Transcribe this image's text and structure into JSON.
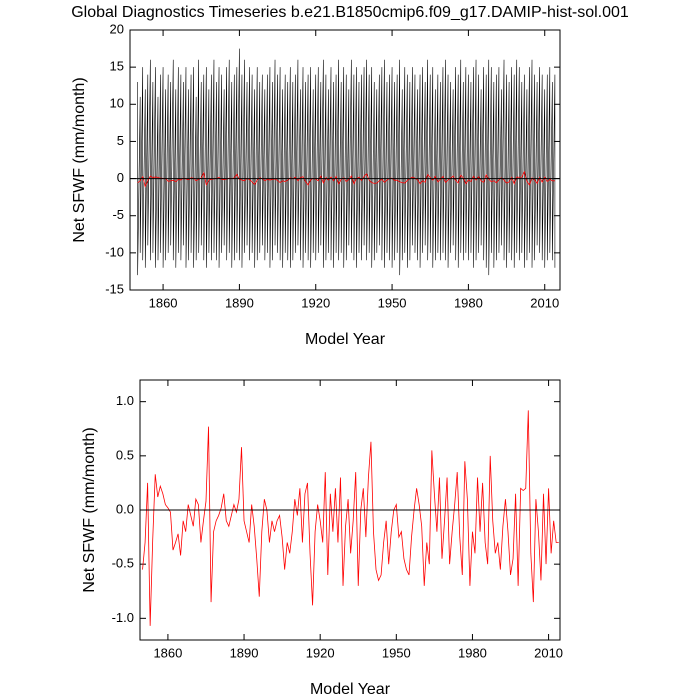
{
  "chart_data": [
    {
      "type": "line",
      "title": "Global Diagnostics Timeseries b.e21.B1850cmip6.f09_g17.DAMIP-hist-sol.001",
      "x_label": "Model Year",
      "y_label": "Net SFWF (mm/month)",
      "xlim": [
        1847,
        2016
      ],
      "xticks": [
        1860,
        1890,
        1920,
        1950,
        1980,
        2010
      ],
      "ylim": [
        -15,
        20
      ],
      "yticks": [
        -15,
        -10,
        -5,
        0,
        5,
        10,
        15,
        20
      ],
      "reference_line": 0,
      "x": [
        1850,
        1851,
        1852,
        1853,
        1854,
        1855,
        1856,
        1857,
        1858,
        1859,
        1860,
        1861,
        1862,
        1863,
        1864,
        1865,
        1866,
        1867,
        1868,
        1869,
        1870,
        1871,
        1872,
        1873,
        1874,
        1875,
        1876,
        1877,
        1878,
        1879,
        1880,
        1881,
        1882,
        1883,
        1884,
        1885,
        1886,
        1887,
        1888,
        1889,
        1890,
        1891,
        1892,
        1893,
        1894,
        1895,
        1896,
        1897,
        1898,
        1899,
        1900,
        1901,
        1902,
        1903,
        1904,
        1905,
        1906,
        1907,
        1908,
        1909,
        1910,
        1911,
        1912,
        1913,
        1914,
        1915,
        1916,
        1917,
        1918,
        1919,
        1920,
        1921,
        1922,
        1923,
        1924,
        1925,
        1926,
        1927,
        1928,
        1929,
        1930,
        1931,
        1932,
        1933,
        1934,
        1935,
        1936,
        1937,
        1938,
        1939,
        1940,
        1941,
        1942,
        1943,
        1944,
        1945,
        1946,
        1947,
        1948,
        1949,
        1950,
        1951,
        1952,
        1953,
        1954,
        1955,
        1956,
        1957,
        1958,
        1959,
        1960,
        1961,
        1962,
        1963,
        1964,
        1965,
        1966,
        1967,
        1968,
        1969,
        1970,
        1971,
        1972,
        1973,
        1974,
        1975,
        1976,
        1977,
        1978,
        1979,
        1980,
        1981,
        1982,
        1983,
        1984,
        1985,
        1986,
        1987,
        1988,
        1989,
        1990,
        1991,
        1992,
        1993,
        1994,
        1995,
        1996,
        1997,
        1998,
        1999,
        2000,
        2001,
        2002,
        2003,
        2004,
        2005,
        2006,
        2007,
        2008,
        2009,
        2010,
        2011,
        2012,
        2013,
        2014
      ],
      "series": [
        {
          "color": "#000000",
          "high": [
            13,
            11,
            15,
            12,
            14,
            16,
            13,
            15,
            11,
            14,
            15,
            12,
            14,
            13,
            16,
            12,
            15,
            14,
            13,
            15,
            12,
            14,
            15,
            11,
            16,
            13,
            14,
            15,
            12,
            14,
            16,
            13,
            15,
            14,
            12,
            15,
            16,
            13,
            14,
            15,
            17.5,
            14,
            16,
            13,
            15,
            14,
            12,
            15,
            13,
            14,
            12,
            14,
            15,
            13,
            16,
            14,
            15,
            12,
            14,
            13,
            15,
            13,
            14,
            16,
            12,
            15,
            13,
            14,
            15,
            12,
            14,
            15,
            13,
            16,
            14,
            12,
            15,
            13,
            14,
            16,
            13,
            15,
            14,
            12,
            16,
            14,
            15,
            13,
            14,
            15,
            16,
            14,
            15,
            13,
            12,
            14,
            15,
            16,
            13,
            14,
            15,
            13,
            14,
            16,
            12,
            15,
            14,
            13,
            15,
            14,
            12,
            14,
            15,
            13,
            16,
            14,
            15,
            12,
            14,
            13,
            15,
            16,
            14,
            13,
            12,
            15,
            14,
            16,
            13,
            15,
            14,
            13,
            15,
            16,
            14,
            12,
            15,
            14,
            16,
            15,
            13,
            14,
            15,
            12,
            16,
            14,
            13,
            15,
            14,
            16,
            15,
            13,
            14,
            12,
            15,
            16,
            14,
            13,
            15,
            14,
            12,
            14,
            15,
            13,
            14
          ],
          "low": [
            -13,
            -10,
            -11,
            -12,
            -9,
            -11,
            -10,
            -12,
            -11,
            -10,
            -12,
            -11,
            -10,
            -9,
            -11,
            -12,
            -10,
            -11,
            -9,
            -12,
            -11,
            -10,
            -12,
            -11,
            -10,
            -9,
            -11,
            -12,
            -10,
            -11,
            -10,
            -11,
            -12,
            -10,
            -9,
            -11,
            -10,
            -12,
            -11,
            -10,
            -11,
            -12,
            -10,
            -9,
            -11,
            -10,
            -12,
            -11,
            -10,
            -9,
            -11,
            -10,
            -12,
            -11,
            -9,
            -10,
            -11,
            -12,
            -10,
            -11,
            -12,
            -11,
            -10,
            -9,
            -11,
            -12,
            -10,
            -11,
            -12,
            -10,
            -11,
            -10,
            -9,
            -12,
            -11,
            -10,
            -11,
            -12,
            -10,
            -11,
            -10,
            -12,
            -11,
            -9,
            -10,
            -11,
            -12,
            -10,
            -11,
            -9,
            -11,
            -10,
            -12,
            -11,
            -10,
            -9,
            -11,
            -12,
            -10,
            -11,
            -12,
            -11,
            -10,
            -13,
            -11,
            -10,
            -12,
            -11,
            -9,
            -10,
            -11,
            -12,
            -10,
            -9,
            -11,
            -10,
            -12,
            -11,
            -10,
            -11,
            -10,
            -11,
            -12,
            -10,
            -9,
            -11,
            -12,
            -10,
            -11,
            -10,
            -11,
            -10,
            -12,
            -11,
            -10,
            -9,
            -11,
            -12,
            -13,
            -10,
            -12,
            -11,
            -10,
            -9,
            -11,
            -12,
            -10,
            -11,
            -12,
            -10,
            -11,
            -10,
            -12,
            -11,
            -10,
            -12,
            -11,
            -9,
            -10,
            -11,
            -12,
            -11,
            -10,
            -11,
            -12
          ]
        },
        {
          "color": "#ff0000",
          "values": [
            -0.55,
            -0.3,
            0.25,
            -1.07,
            -0.28,
            0.33,
            0.12,
            0.22,
            0.15,
            0.05,
            0.02,
            -0.02,
            -0.37,
            -0.3,
            -0.22,
            -0.42,
            -0.1,
            -0.2,
            0.05,
            -0.05,
            -0.15,
            0.1,
            0.05,
            -0.3,
            -0.1,
            0.08,
            0.77,
            -0.85,
            -0.2,
            -0.1,
            -0.05,
            0.02,
            0.15,
            -0.1,
            -0.15,
            -0.05,
            0.05,
            -0.02,
            0.1,
            0.58,
            -0.1,
            -0.2,
            -0.3,
            0.05,
            -0.15,
            -0.45,
            -0.8,
            -0.2,
            0.1,
            0.0,
            -0.3,
            -0.1,
            -0.2,
            -0.1,
            -0.05,
            -0.25,
            -0.55,
            -0.3,
            -0.4,
            -0.2,
            0.1,
            -0.05,
            0.2,
            -0.3,
            0.15,
            0.25,
            -0.4,
            -0.88,
            -0.2,
            0.05,
            -0.1,
            -0.3,
            0.35,
            -0.6,
            0.15,
            -0.2,
            0.2,
            -0.3,
            0.3,
            -0.7,
            -0.15,
            0.1,
            -0.4,
            -0.1,
            0.35,
            -0.7,
            0.0,
            0.2,
            -0.25,
            0.3,
            0.63,
            -0.2,
            -0.55,
            -0.65,
            -0.6,
            -0.3,
            -0.1,
            -0.5,
            -0.2,
            0.0,
            0.05,
            -0.25,
            -0.2,
            -0.45,
            -0.55,
            -0.6,
            -0.25,
            0.0,
            0.2,
            0.05,
            -0.15,
            -0.7,
            -0.3,
            -0.5,
            0.55,
            0.15,
            -0.2,
            0.3,
            -0.45,
            -0.1,
            0.3,
            -0.5,
            -0.2,
            0.05,
            0.35,
            -0.25,
            -0.6,
            0.45,
            0.1,
            -0.7,
            -0.2,
            -0.4,
            0.3,
            -0.2,
            0.25,
            -0.3,
            -0.5,
            0.5,
            -0.1,
            -0.4,
            -0.3,
            -0.55,
            -0.15,
            0.1,
            -0.2,
            -0.6,
            -0.45,
            0.15,
            -0.7,
            0.2,
            0.18,
            0.2,
            0.92,
            -0.4,
            -0.85,
            0.1,
            -0.2,
            -0.65,
            0.15,
            -0.5,
            0.2,
            -0.4,
            -0.1,
            -0.3,
            -0.3
          ]
        }
      ]
    },
    {
      "type": "line",
      "x_label": "Model Year",
      "y_label": "Net SFWF (mm/month)",
      "xlim": [
        1849,
        2014.5
      ],
      "xticks": [
        1860,
        1890,
        1920,
        1950,
        1980,
        2010
      ],
      "ylim": [
        -1.2,
        1.2
      ],
      "yticks": [
        {
          "value": -1,
          "label": "-1.0"
        },
        -0.5,
        {
          "value": 0,
          "label": "0.0"
        },
        0.5,
        {
          "value": 1,
          "label": "1.0"
        }
      ],
      "reference_line": 0,
      "x": [
        1850,
        1851,
        1852,
        1853,
        1854,
        1855,
        1856,
        1857,
        1858,
        1859,
        1860,
        1861,
        1862,
        1863,
        1864,
        1865,
        1866,
        1867,
        1868,
        1869,
        1870,
        1871,
        1872,
        1873,
        1874,
        1875,
        1876,
        1877,
        1878,
        1879,
        1880,
        1881,
        1882,
        1883,
        1884,
        1885,
        1886,
        1887,
        1888,
        1889,
        1890,
        1891,
        1892,
        1893,
        1894,
        1895,
        1896,
        1897,
        1898,
        1899,
        1900,
        1901,
        1902,
        1903,
        1904,
        1905,
        1906,
        1907,
        1908,
        1909,
        1910,
        1911,
        1912,
        1913,
        1914,
        1915,
        1916,
        1917,
        1918,
        1919,
        1920,
        1921,
        1922,
        1923,
        1924,
        1925,
        1926,
        1927,
        1928,
        1929,
        1930,
        1931,
        1932,
        1933,
        1934,
        1935,
        1936,
        1937,
        1938,
        1939,
        1940,
        1941,
        1942,
        1943,
        1944,
        1945,
        1946,
        1947,
        1948,
        1949,
        1950,
        1951,
        1952,
        1953,
        1954,
        1955,
        1956,
        1957,
        1958,
        1959,
        1960,
        1961,
        1962,
        1963,
        1964,
        1965,
        1966,
        1967,
        1968,
        1969,
        1970,
        1971,
        1972,
        1973,
        1974,
        1975,
        1976,
        1977,
        1978,
        1979,
        1980,
        1981,
        1982,
        1983,
        1984,
        1985,
        1986,
        1987,
        1988,
        1989,
        1990,
        1991,
        1992,
        1993,
        1994,
        1995,
        1996,
        1997,
        1998,
        1999,
        2000,
        2001,
        2002,
        2003,
        2004,
        2005,
        2006,
        2007,
        2008,
        2009,
        2010,
        2011,
        2012,
        2013,
        2014
      ],
      "series": [
        {
          "color": "#ff0000",
          "values": [
            -0.55,
            -0.3,
            0.25,
            -1.07,
            -0.28,
            0.33,
            0.12,
            0.22,
            0.15,
            0.05,
            0.02,
            -0.02,
            -0.37,
            -0.3,
            -0.22,
            -0.42,
            -0.1,
            -0.2,
            0.05,
            -0.05,
            -0.15,
            0.1,
            0.05,
            -0.3,
            -0.1,
            0.08,
            0.77,
            -0.85,
            -0.2,
            -0.1,
            -0.05,
            0.02,
            0.15,
            -0.1,
            -0.15,
            -0.05,
            0.05,
            -0.02,
            0.1,
            0.58,
            -0.1,
            -0.2,
            -0.3,
            0.05,
            -0.15,
            -0.45,
            -0.8,
            -0.2,
            0.1,
            0.0,
            -0.3,
            -0.1,
            -0.2,
            -0.1,
            -0.05,
            -0.25,
            -0.55,
            -0.3,
            -0.4,
            -0.2,
            0.1,
            -0.05,
            0.2,
            -0.3,
            0.15,
            0.25,
            -0.4,
            -0.88,
            -0.2,
            0.05,
            -0.1,
            -0.3,
            0.35,
            -0.6,
            0.15,
            -0.2,
            0.2,
            -0.3,
            0.3,
            -0.7,
            -0.15,
            0.1,
            -0.4,
            -0.1,
            0.35,
            -0.7,
            0.0,
            0.2,
            -0.25,
            0.3,
            0.63,
            -0.2,
            -0.55,
            -0.65,
            -0.6,
            -0.3,
            -0.1,
            -0.5,
            -0.2,
            0.0,
            0.05,
            -0.25,
            -0.2,
            -0.45,
            -0.55,
            -0.6,
            -0.25,
            0.0,
            0.2,
            0.05,
            -0.15,
            -0.7,
            -0.3,
            -0.5,
            0.55,
            0.15,
            -0.2,
            0.3,
            -0.45,
            -0.1,
            0.3,
            -0.5,
            -0.2,
            0.05,
            0.35,
            -0.25,
            -0.6,
            0.45,
            0.1,
            -0.7,
            -0.2,
            -0.4,
            0.3,
            -0.2,
            0.25,
            -0.3,
            -0.5,
            0.5,
            -0.1,
            -0.4,
            -0.3,
            -0.55,
            -0.15,
            0.1,
            -0.2,
            -0.6,
            -0.45,
            0.15,
            -0.7,
            0.2,
            0.18,
            0.2,
            0.92,
            -0.4,
            -0.85,
            0.1,
            -0.2,
            -0.65,
            0.15,
            -0.5,
            0.2,
            -0.4,
            -0.1,
            -0.3,
            -0.3
          ]
        }
      ]
    }
  ]
}
